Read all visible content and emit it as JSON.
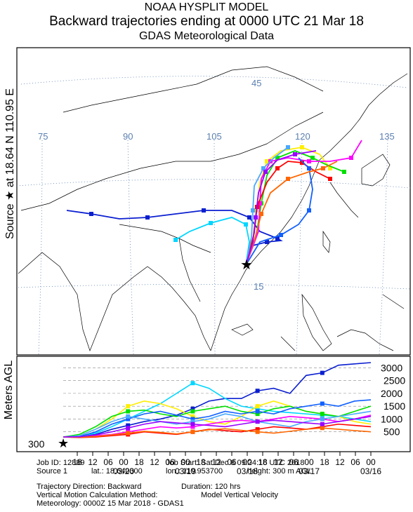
{
  "header": {
    "model": "NOAA HYSPLIT MODEL",
    "title": "Backward trajectories ending at 0000 UTC 21 Mar 18",
    "subtitle": "GDAS Meteorological Data"
  },
  "map": {
    "source_label": "Source ★ at  18.64 N  110.95 E",
    "lon_labels": [
      "75",
      "90",
      "105",
      "120",
      "135"
    ],
    "lat_labels": [
      "45",
      "15"
    ],
    "source": {
      "lat": 18.64,
      "lon": 110.95
    },
    "colors": {
      "land_line": "#000000",
      "grid": "#5b7fb0",
      "star": "#000000"
    }
  },
  "height_panel": {
    "axis_label": "Meters AGL",
    "start_label": "300",
    "y_ticks": [
      "3000",
      "2500",
      "2000",
      "1500",
      "1000",
      "500"
    ],
    "hour_labels": [
      "18",
      "12",
      "06",
      "00",
      "18",
      "12",
      "06",
      "00",
      "18",
      "12",
      "06",
      "00",
      "18",
      "12",
      "06",
      "00",
      "18",
      "12",
      "06",
      "00"
    ],
    "date_labels": [
      "03/20",
      "03/19",
      "03/18",
      "03/17",
      "03/16"
    ]
  },
  "trajectories": [
    {
      "color": "#0b1fd0",
      "heights": [
        300,
        320,
        400,
        600,
        750,
        900,
        1000,
        1150,
        1400,
        1700,
        1800,
        1800,
        2100,
        2200,
        2000,
        2700,
        2800,
        3100,
        3150,
        3200
      ]
    },
    {
      "color": "#00d6ff",
      "heights": [
        300,
        330,
        450,
        700,
        1000,
        1300,
        1600,
        2000,
        2400,
        2200,
        1800,
        1500,
        1400,
        1300,
        1250,
        1200,
        1150,
        1100,
        1000,
        900
      ]
    },
    {
      "color": "#ffee00",
      "heights": [
        300,
        350,
        600,
        1000,
        1500,
        1700,
        1600,
        1400,
        1100,
        900,
        800,
        1100,
        1500,
        1700,
        1500,
        1300,
        1200,
        1100,
        900,
        800
      ]
    },
    {
      "color": "#00e000",
      "heights": [
        300,
        400,
        700,
        1100,
        1300,
        1350,
        1200,
        1100,
        1300,
        1400,
        1500,
        1300,
        1200,
        1400,
        1500,
        1300,
        1200,
        1100,
        1300,
        1500
      ]
    },
    {
      "color": "#ff00ff",
      "heights": [
        300,
        300,
        350,
        400,
        500,
        600,
        700,
        650,
        700,
        800,
        900,
        950,
        900,
        1000,
        1100,
        1050,
        1000,
        900,
        1000,
        1150
      ]
    },
    {
      "color": "#ff0000",
      "heights": [
        300,
        280,
        300,
        350,
        400,
        500,
        450,
        400,
        500,
        600,
        550,
        500,
        600,
        700,
        650,
        600,
        700,
        800,
        750,
        700
      ]
    },
    {
      "color": "#1060ff",
      "heights": [
        300,
        320,
        500,
        800,
        1000,
        1200,
        1300,
        1150,
        1000,
        1100,
        1300,
        1200,
        1300,
        1200,
        1400,
        1500,
        1600,
        1500,
        1700,
        1750
      ]
    },
    {
      "color": "#4aa8ff",
      "heights": [
        300,
        350,
        600,
        900,
        1100,
        1000,
        900,
        800,
        900,
        1000,
        1200,
        1100,
        900,
        800,
        700,
        900,
        1000,
        1100,
        1200,
        1300
      ]
    },
    {
      "color": "#ff6600",
      "heights": [
        300,
        290,
        320,
        380,
        450,
        520,
        480,
        420,
        500,
        580,
        620,
        560,
        500,
        450,
        520,
        600,
        650,
        600,
        550,
        500
      ]
    },
    {
      "color": "#9900ff",
      "heights": [
        300,
        310,
        380,
        500,
        650,
        800,
        900,
        850,
        800,
        750,
        700,
        800,
        900,
        950,
        900,
        850,
        800,
        900,
        1000,
        1100
      ]
    }
  ],
  "footer": {
    "job_id": "Job ID: 12889",
    "job_start": "Job Start: Sat Dec  8 09:24:16 UTC 2018",
    "source": "Source 1",
    "lat": "lat.: 18.640300",
    "lon": "lon.: 110.953700",
    "height": "height: 300 m AGL",
    "direction": "Trajectory Direction: Backward",
    "duration": "Duration: 120 hrs",
    "vertical_method_label": "Vertical Motion Calculation Method:",
    "vertical_method_value": "Model Vertical Velocity",
    "meteorology": "Meteorology: 0000Z 15 Mar 2018 - GDAS1"
  }
}
